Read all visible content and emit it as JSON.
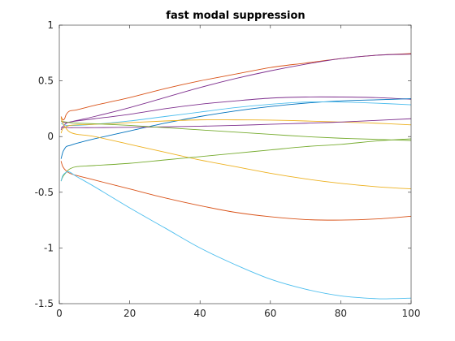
{
  "chart_data": {
    "type": "line",
    "title": "fast modal suppression",
    "xlabel": "",
    "ylabel": "",
    "xlim": [
      0,
      100
    ],
    "ylim": [
      -1.5,
      1
    ],
    "xticks": [
      0,
      20,
      40,
      60,
      80,
      100
    ],
    "yticks": [
      -1.5,
      -1,
      -0.5,
      0,
      0.5,
      1
    ],
    "xtick_labels": [
      "0",
      "20",
      "40",
      "60",
      "80",
      "100"
    ],
    "ytick_labels": [
      "-1.5",
      "-1",
      "-0.5",
      "0",
      "0.5",
      "1"
    ],
    "grid": false,
    "legend": "none",
    "colors": {
      "axis": "#262626",
      "background": "#ffffff"
    },
    "series": [
      {
        "color": "#D95319",
        "x": [
          0.5,
          1,
          1.5,
          2,
          3,
          5,
          10,
          20,
          30,
          40,
          50,
          60,
          70,
          80,
          90,
          100
        ],
        "y": [
          0.18,
          0.15,
          0.16,
          0.2,
          0.23,
          0.24,
          0.28,
          0.35,
          0.43,
          0.5,
          0.56,
          0.62,
          0.66,
          0.7,
          0.73,
          0.745
        ]
      },
      {
        "color": "#7E2F8E",
        "x": [
          0.5,
          1,
          2,
          3,
          5,
          10,
          20,
          30,
          40,
          50,
          60,
          70,
          80,
          90,
          100
        ],
        "y": [
          0.06,
          0.09,
          0.12,
          0.13,
          0.145,
          0.18,
          0.26,
          0.35,
          0.44,
          0.52,
          0.59,
          0.65,
          0.7,
          0.73,
          0.74
        ]
      },
      {
        "color": "#7E2F8E",
        "x": [
          0.5,
          1,
          2,
          3,
          5,
          10,
          20,
          30,
          40,
          50,
          60,
          70,
          80,
          90,
          100
        ],
        "y": [
          0.14,
          0.13,
          0.125,
          0.13,
          0.14,
          0.16,
          0.2,
          0.25,
          0.29,
          0.32,
          0.345,
          0.355,
          0.355,
          0.35,
          0.335
        ]
      },
      {
        "color": "#0072BD",
        "x": [
          0.5,
          1,
          1.5,
          2,
          3,
          5,
          10,
          20,
          30,
          40,
          50,
          60,
          70,
          80,
          90,
          100
        ],
        "y": [
          -0.2,
          -0.14,
          -0.11,
          -0.09,
          -0.08,
          -0.06,
          -0.02,
          0.05,
          0.12,
          0.18,
          0.23,
          0.27,
          0.3,
          0.32,
          0.33,
          0.34
        ]
      },
      {
        "color": "#4DBEEE",
        "x": [
          0.5,
          1,
          2,
          3,
          5,
          10,
          20,
          30,
          40,
          50,
          60,
          70,
          80,
          90,
          100
        ],
        "y": [
          0.12,
          0.11,
          0.1,
          0.1,
          0.1,
          0.11,
          0.14,
          0.18,
          0.22,
          0.26,
          0.29,
          0.31,
          0.31,
          0.3,
          0.285
        ]
      },
      {
        "color": "#EDB120",
        "x": [
          0.5,
          1,
          2,
          3,
          5,
          10,
          20,
          30,
          40,
          50,
          60,
          70,
          80,
          90,
          100
        ],
        "y": [
          0.03,
          0.07,
          0.09,
          0.1,
          0.105,
          0.11,
          0.125,
          0.14,
          0.15,
          0.15,
          0.148,
          0.14,
          0.13,
          0.12,
          0.105
        ]
      },
      {
        "color": "#7E2F8E",
        "x": [
          0.5,
          1,
          2,
          3,
          5,
          10,
          20,
          30,
          40,
          50,
          60,
          70,
          80,
          90,
          100
        ],
        "y": [
          0.08,
          0.085,
          0.082,
          0.08,
          0.08,
          0.08,
          0.083,
          0.087,
          0.093,
          0.1,
          0.11,
          0.12,
          0.13,
          0.145,
          0.16
        ]
      },
      {
        "color": "#77AC30",
        "x": [
          0.5,
          1,
          2,
          3,
          5,
          10,
          20,
          30,
          40,
          50,
          60,
          70,
          80,
          90,
          100
        ],
        "y": [
          0.14,
          0.135,
          0.13,
          0.125,
          0.12,
          0.115,
          0.1,
          0.08,
          0.06,
          0.04,
          0.02,
          0.0,
          -0.015,
          -0.025,
          -0.035
        ]
      },
      {
        "color": "#EDB120",
        "x": [
          0.5,
          1,
          2,
          3,
          5,
          10,
          20,
          30,
          40,
          50,
          60,
          70,
          80,
          90,
          100
        ],
        "y": [
          0.17,
          0.12,
          0.07,
          0.04,
          0.02,
          0.0,
          -0.07,
          -0.14,
          -0.21,
          -0.27,
          -0.33,
          -0.38,
          -0.42,
          -0.45,
          -0.47
        ]
      },
      {
        "color": "#77AC30",
        "x": [
          0.5,
          1,
          2,
          3,
          5,
          10,
          20,
          30,
          40,
          50,
          60,
          70,
          80,
          90,
          100
        ],
        "y": [
          -0.4,
          -0.36,
          -0.32,
          -0.29,
          -0.27,
          -0.26,
          -0.24,
          -0.21,
          -0.18,
          -0.15,
          -0.12,
          -0.09,
          -0.07,
          -0.04,
          -0.02
        ]
      },
      {
        "color": "#D95319",
        "x": [
          0.5,
          1,
          2,
          3,
          5,
          10,
          20,
          30,
          40,
          50,
          60,
          70,
          80,
          90,
          100
        ],
        "y": [
          -0.22,
          -0.27,
          -0.31,
          -0.33,
          -0.35,
          -0.39,
          -0.47,
          -0.55,
          -0.62,
          -0.68,
          -0.72,
          -0.745,
          -0.75,
          -0.74,
          -0.715
        ]
      },
      {
        "color": "#4DBEEE",
        "x": [
          0.5,
          1,
          2,
          3,
          5,
          10,
          20,
          30,
          40,
          50,
          60,
          70,
          80,
          90,
          95,
          100
        ],
        "y": [
          -0.4,
          -0.35,
          -0.32,
          -0.32,
          -0.36,
          -0.45,
          -0.64,
          -0.82,
          -1.0,
          -1.15,
          -1.28,
          -1.37,
          -1.43,
          -1.455,
          -1.455,
          -1.45
        ]
      }
    ]
  }
}
